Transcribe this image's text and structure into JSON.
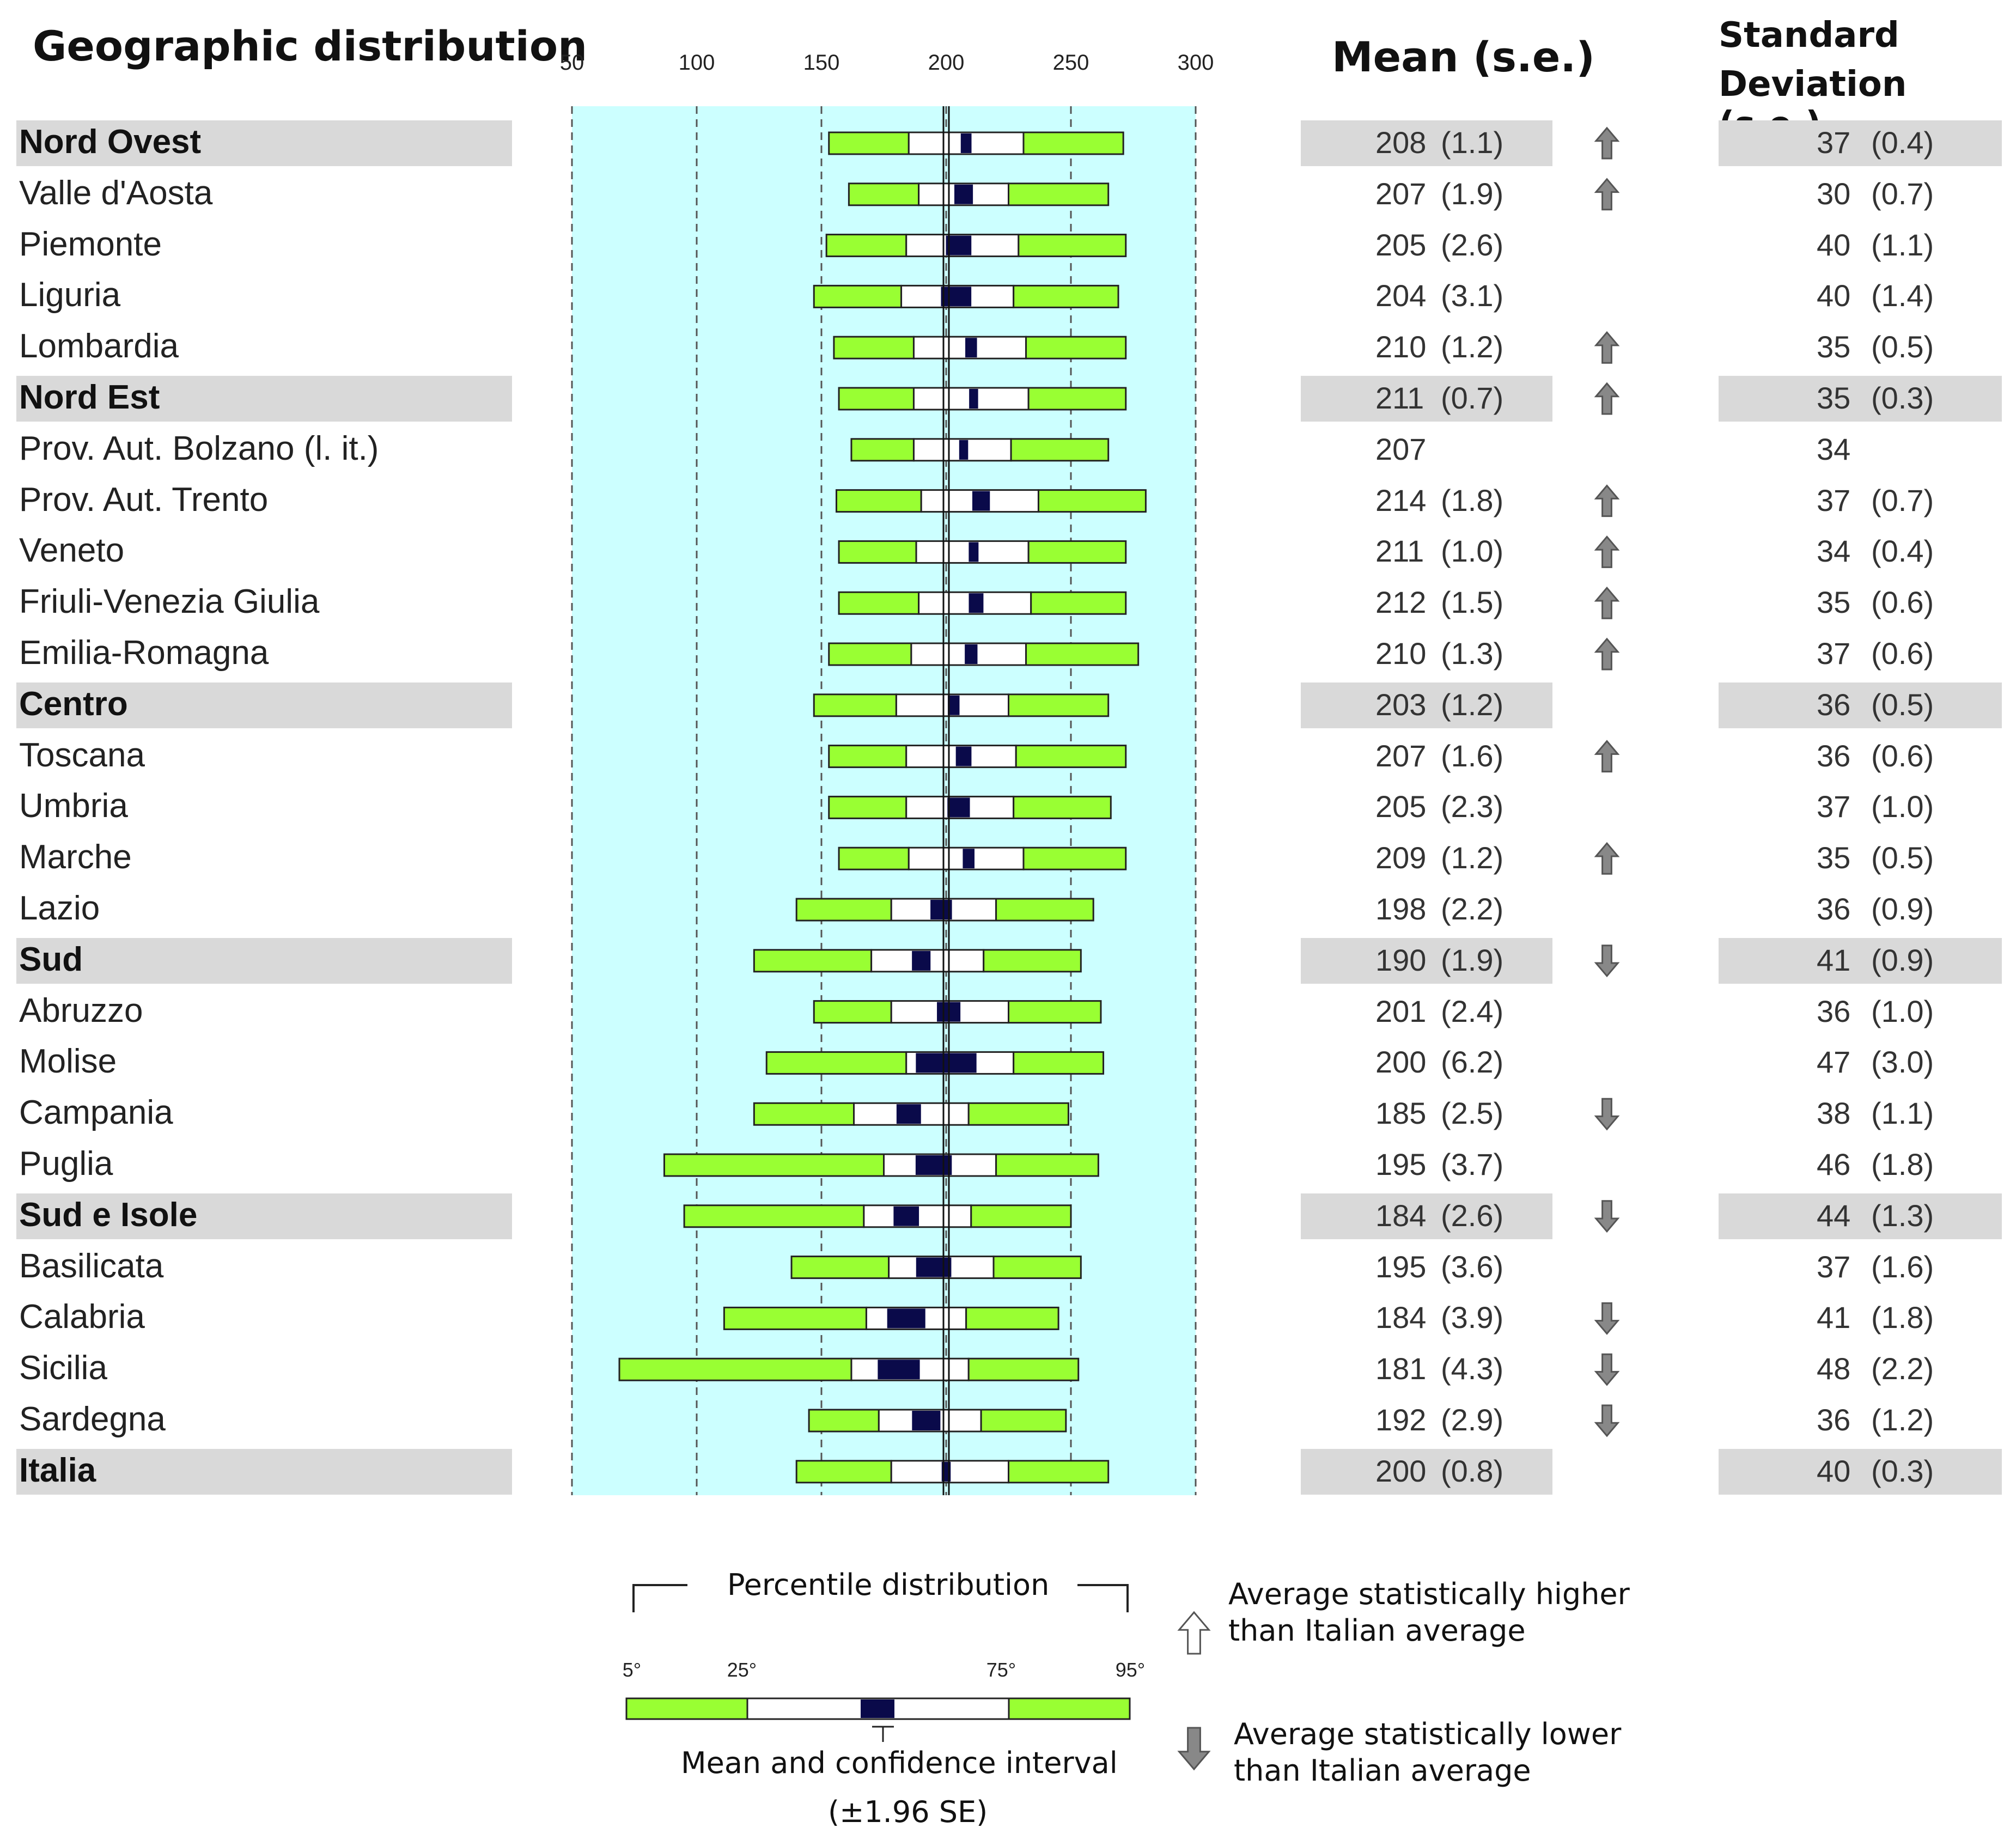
{
  "headers": {
    "geo": "Geographic distribution",
    "mean": "Mean (s.e.)",
    "sd_line1": "Standard",
    "sd_line2": "Deviation (s.e.)"
  },
  "colors": {
    "outer": "#99ff33",
    "inner": "#ffffff",
    "ci": "#0a0a4a",
    "plot_bg": "#ccffff",
    "band": "#d9d9d9",
    "arrow": "#888888"
  },
  "legend": {
    "percentile_title": "Percentile distribution",
    "p5": "5°",
    "p25": "25°",
    "p75": "75°",
    "p95": "95°",
    "mean_ci_line1": "Mean and confidence interval",
    "mean_ci_line2": "(±1.96 SE)",
    "higher_line1": "Average statistically higher",
    "higher_line2": "than Italian average",
    "lower_line1": "Average statistically lower",
    "lower_line2": "than Italian average"
  },
  "chart_data": {
    "type": "percentile-bar",
    "xlim": [
      50,
      300
    ],
    "ticks": [
      50,
      100,
      150,
      200,
      250,
      300
    ],
    "reference_value": 200,
    "rows": [
      {
        "label": "Nord Ovest",
        "region": true,
        "p5": 153,
        "p25": 185,
        "p75": 231,
        "p95": 271,
        "mean": 208,
        "se": 1.1,
        "mean_text": "208",
        "se_text": "(1.1)",
        "sd_text": "37",
        "sd_se_text": "(0.4)",
        "sig": "up"
      },
      {
        "label": "Valle d'Aosta",
        "region": false,
        "p5": 161,
        "p25": 189,
        "p75": 225,
        "p95": 265,
        "mean": 207,
        "se": 1.9,
        "mean_text": "207",
        "se_text": "(1.9)",
        "sd_text": "30",
        "sd_se_text": "(0.7)",
        "sig": "up"
      },
      {
        "label": "Piemonte",
        "region": false,
        "p5": 152,
        "p25": 184,
        "p75": 229,
        "p95": 272,
        "mean": 205,
        "se": 2.6,
        "mean_text": "205",
        "se_text": "(2.6)",
        "sd_text": "40",
        "sd_se_text": "(1.1)",
        "sig": ""
      },
      {
        "label": "Liguria",
        "region": false,
        "p5": 147,
        "p25": 182,
        "p75": 227,
        "p95": 269,
        "mean": 204,
        "se": 3.1,
        "mean_text": "204",
        "se_text": "(3.1)",
        "sd_text": "40",
        "sd_se_text": "(1.4)",
        "sig": ""
      },
      {
        "label": "Lombardia",
        "region": false,
        "p5": 155,
        "p25": 187,
        "p75": 232,
        "p95": 272,
        "mean": 210,
        "se": 1.2,
        "mean_text": "210",
        "se_text": "(1.2)",
        "sd_text": "35",
        "sd_se_text": "(0.5)",
        "sig": "up"
      },
      {
        "label": "Nord Est",
        "region": true,
        "p5": 157,
        "p25": 187,
        "p75": 233,
        "p95": 272,
        "mean": 211,
        "se": 0.7,
        "mean_text": "211",
        "se_text": "(0.7)",
        "sd_text": "35",
        "sd_se_text": "(0.3)",
        "sig": "up"
      },
      {
        "label": "Prov. Aut. Bolzano (l. it.)",
        "region": false,
        "p5": 162,
        "p25": 187,
        "p75": 226,
        "p95": 265,
        "mean": 207,
        "se": 0,
        "mean_text": "207",
        "se_text": "",
        "sd_text": "34",
        "sd_se_text": "",
        "sig": ""
      },
      {
        "label": "Prov. Aut. Trento",
        "region": false,
        "p5": 156,
        "p25": 190,
        "p75": 237,
        "p95": 280,
        "mean": 214,
        "se": 1.8,
        "mean_text": "214",
        "se_text": "(1.8)",
        "sd_text": "37",
        "sd_se_text": "(0.7)",
        "sig": "up"
      },
      {
        "label": "Veneto",
        "region": false,
        "p5": 157,
        "p25": 188,
        "p75": 233,
        "p95": 272,
        "mean": 211,
        "se": 1.0,
        "mean_text": "211",
        "se_text": "(1.0)",
        "sd_text": "34",
        "sd_se_text": "(0.4)",
        "sig": "up"
      },
      {
        "label": "Friuli-Venezia Giulia",
        "region": false,
        "p5": 157,
        "p25": 189,
        "p75": 234,
        "p95": 272,
        "mean": 212,
        "se": 1.5,
        "mean_text": "212",
        "se_text": "(1.5)",
        "sd_text": "35",
        "sd_se_text": "(0.6)",
        "sig": "up"
      },
      {
        "label": "Emilia-Romagna",
        "region": false,
        "p5": 153,
        "p25": 186,
        "p75": 232,
        "p95": 277,
        "mean": 210,
        "se": 1.3,
        "mean_text": "210",
        "se_text": "(1.3)",
        "sd_text": "37",
        "sd_se_text": "(0.6)",
        "sig": "up"
      },
      {
        "label": "Centro",
        "region": true,
        "p5": 147,
        "p25": 180,
        "p75": 225,
        "p95": 265,
        "mean": 203,
        "se": 1.2,
        "mean_text": "203",
        "se_text": "(1.2)",
        "sd_text": "36",
        "sd_se_text": "(0.5)",
        "sig": ""
      },
      {
        "label": "Toscana",
        "region": false,
        "p5": 153,
        "p25": 184,
        "p75": 228,
        "p95": 272,
        "mean": 207,
        "se": 1.6,
        "mean_text": "207",
        "se_text": "(1.6)",
        "sd_text": "36",
        "sd_se_text": "(0.6)",
        "sig": "up"
      },
      {
        "label": "Umbria",
        "region": false,
        "p5": 153,
        "p25": 184,
        "p75": 227,
        "p95": 266,
        "mean": 205,
        "se": 2.3,
        "mean_text": "205",
        "se_text": "(2.3)",
        "sd_text": "37",
        "sd_se_text": "(1.0)",
        "sig": ""
      },
      {
        "label": "Marche",
        "region": false,
        "p5": 157,
        "p25": 185,
        "p75": 231,
        "p95": 272,
        "mean": 209,
        "se": 1.2,
        "mean_text": "209",
        "se_text": "(1.2)",
        "sd_text": "35",
        "sd_se_text": "(0.5)",
        "sig": "up"
      },
      {
        "label": "Lazio",
        "region": false,
        "p5": 140,
        "p25": 178,
        "p75": 220,
        "p95": 259,
        "mean": 198,
        "se": 2.2,
        "mean_text": "198",
        "se_text": "(2.2)",
        "sd_text": "36",
        "sd_se_text": "(0.9)",
        "sig": ""
      },
      {
        "label": "Sud",
        "region": true,
        "p5": 123,
        "p25": 170,
        "p75": 215,
        "p95": 254,
        "mean": 190,
        "se": 1.9,
        "mean_text": "190",
        "se_text": "(1.9)",
        "sd_text": "41",
        "sd_se_text": "(0.9)",
        "sig": "down"
      },
      {
        "label": "Abruzzo",
        "region": false,
        "p5": 147,
        "p25": 178,
        "p75": 225,
        "p95": 262,
        "mean": 201,
        "se": 2.4,
        "mean_text": "201",
        "se_text": "(2.4)",
        "sd_text": "36",
        "sd_se_text": "(1.0)",
        "sig": ""
      },
      {
        "label": "Molise",
        "region": false,
        "p5": 128,
        "p25": 184,
        "p75": 227,
        "p95": 263,
        "mean": 200,
        "se": 6.2,
        "mean_text": "200",
        "se_text": "(6.2)",
        "sd_text": "47",
        "sd_se_text": "(3.0)",
        "sig": ""
      },
      {
        "label": "Campania",
        "region": false,
        "p5": 123,
        "p25": 163,
        "p75": 209,
        "p95": 249,
        "mean": 185,
        "se": 2.5,
        "mean_text": "185",
        "se_text": "(2.5)",
        "sd_text": "38",
        "sd_se_text": "(1.1)",
        "sig": "down"
      },
      {
        "label": "Puglia",
        "region": false,
        "p5": 87,
        "p25": 175,
        "p75": 220,
        "p95": 261,
        "mean": 195,
        "se": 3.7,
        "mean_text": "195",
        "se_text": "(3.7)",
        "sd_text": "46",
        "sd_se_text": "(1.8)",
        "sig": ""
      },
      {
        "label": "Sud e Isole",
        "region": true,
        "p5": 95,
        "p25": 167,
        "p75": 210,
        "p95": 250,
        "mean": 184,
        "se": 2.6,
        "mean_text": "184",
        "se_text": "(2.6)",
        "sd_text": "44",
        "sd_se_text": "(1.3)",
        "sig": "down"
      },
      {
        "label": "Basilicata",
        "region": false,
        "p5": 138,
        "p25": 177,
        "p75": 219,
        "p95": 254,
        "mean": 195,
        "se": 3.6,
        "mean_text": "195",
        "se_text": "(3.6)",
        "sd_text": "37",
        "sd_se_text": "(1.6)",
        "sig": ""
      },
      {
        "label": "Calabria",
        "region": false,
        "p5": 111,
        "p25": 168,
        "p75": 208,
        "p95": 245,
        "mean": 184,
        "se": 3.9,
        "mean_text": "184",
        "se_text": "(3.9)",
        "sd_text": "41",
        "sd_se_text": "(1.8)",
        "sig": "down"
      },
      {
        "label": "Sicilia",
        "region": false,
        "p5": 69,
        "p25": 162,
        "p75": 209,
        "p95": 253,
        "mean": 181,
        "se": 4.3,
        "mean_text": "181",
        "se_text": "(4.3)",
        "sd_text": "48",
        "sd_se_text": "(2.2)",
        "sig": "down"
      },
      {
        "label": "Sardegna",
        "region": false,
        "p5": 145,
        "p25": 173,
        "p75": 214,
        "p95": 248,
        "mean": 192,
        "se": 2.9,
        "mean_text": "192",
        "se_text": "(2.9)",
        "sd_text": "36",
        "sd_se_text": "(1.2)",
        "sig": "down"
      },
      {
        "label": "Italia",
        "region": true,
        "p5": 140,
        "p25": 178,
        "p75": 225,
        "p95": 265,
        "mean": 200,
        "se": 0.8,
        "mean_text": "200",
        "se_text": "(0.8)",
        "sd_text": "40",
        "sd_se_text": "(0.3)",
        "sig": ""
      }
    ]
  }
}
